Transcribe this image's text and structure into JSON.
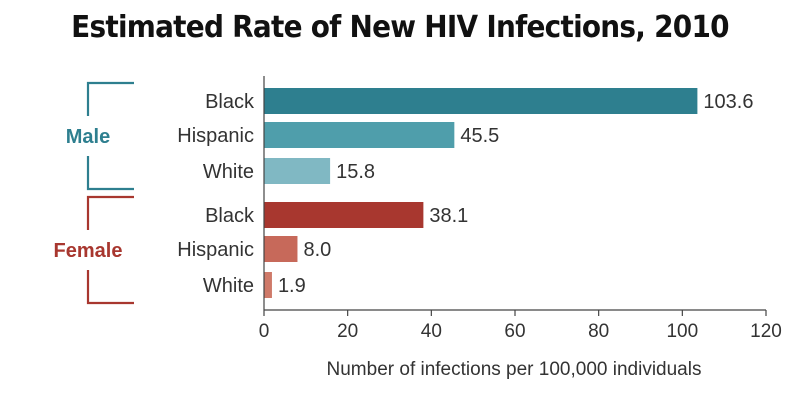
{
  "chart_data": {
    "type": "bar",
    "orientation": "horizontal",
    "title": "Estimated Rate of New HIV Infections, 2010",
    "xlabel": "Number of infections per 100,000 individuals",
    "ylabel": "",
    "xlim": [
      0,
      120
    ],
    "xticks": [
      0,
      20,
      40,
      60,
      80,
      100,
      120
    ],
    "grid": false,
    "groups": [
      {
        "name": "Male",
        "color": "#2e7f8f",
        "bars": [
          {
            "category": "Black",
            "value": 103.6,
            "label": "103.6",
            "color": "#2e7f8f"
          },
          {
            "category": "Hispanic",
            "value": 45.5,
            "label": "45.5",
            "color": "#4f9eab"
          },
          {
            "category": "White",
            "value": 15.8,
            "label": "15.8",
            "color": "#80b8c3"
          }
        ]
      },
      {
        "name": "Female",
        "color": "#a8372f",
        "bars": [
          {
            "category": "Black",
            "value": 38.1,
            "label": "38.1",
            "color": "#a8372f"
          },
          {
            "category": "Hispanic",
            "value": 8.0,
            "label": "8.0",
            "color": "#c7695a"
          },
          {
            "category": "White",
            "value": 1.9,
            "label": "1.9",
            "color": "#cf7a69"
          }
        ]
      }
    ]
  }
}
